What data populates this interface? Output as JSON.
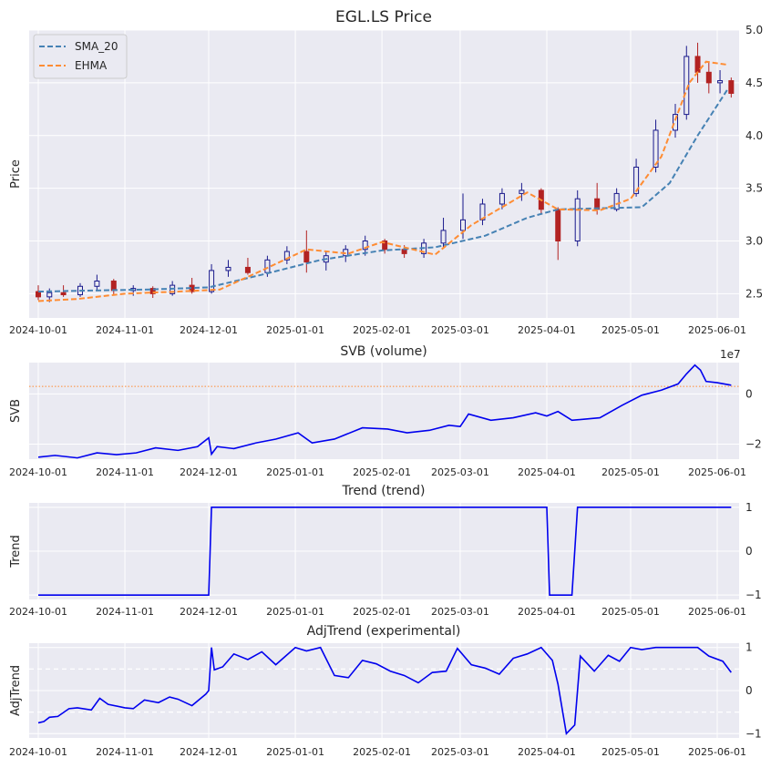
{
  "figure_title": "EGL.LS Price",
  "colors": {
    "plot_bg": "#EAEAF2",
    "grid": "#FFFFFF",
    "sma": "#4682B4",
    "ehma": "#FF8C33",
    "line": "#0000EE",
    "candle_up": "#1A1A8C",
    "candle_down": "#B22222",
    "svb_ref": "#FF8C33"
  },
  "date_ticks": [
    "2024-10-01",
    "2024-11-01",
    "2024-12-01",
    "2025-01-01",
    "2025-02-01",
    "2025-03-01",
    "2025-04-01",
    "2025-05-01",
    "2025-06-01"
  ],
  "chart_data": [
    {
      "type": "candlestick",
      "title": "EGL.LS Price",
      "ylabel": "Price",
      "ylim": [
        2.27,
        5.0
      ],
      "yticks": [
        2.5,
        3.0,
        3.5,
        4.0,
        4.5,
        5.0
      ],
      "ytick_labels": [
        "2.5",
        "3.0",
        "3.5",
        "4.0",
        "4.5",
        "5.0"
      ],
      "legend": "top-left",
      "grid": true,
      "series": [
        {
          "name": "SMA_20",
          "style": "dashed",
          "x": [
            "2024-10-01",
            "2024-10-20",
            "2024-11-10",
            "2024-12-01",
            "2024-12-20",
            "2025-01-10",
            "2025-02-01",
            "2025-02-20",
            "2025-03-10",
            "2025-03-25",
            "2025-04-05",
            "2025-04-20",
            "2025-05-05",
            "2025-05-15",
            "2025-05-25",
            "2025-06-05"
          ],
          "values": [
            2.52,
            2.53,
            2.54,
            2.56,
            2.68,
            2.82,
            2.91,
            2.94,
            3.05,
            3.22,
            3.3,
            3.31,
            3.32,
            3.55,
            4.0,
            4.45
          ]
        },
        {
          "name": "EHMA",
          "style": "dashed",
          "x": [
            "2024-10-01",
            "2024-10-15",
            "2024-11-01",
            "2024-11-20",
            "2024-12-05",
            "2024-12-20",
            "2025-01-05",
            "2025-01-20",
            "2025-02-01",
            "2025-02-20",
            "2025-03-05",
            "2025-03-25",
            "2025-04-05",
            "2025-04-20",
            "2025-05-01",
            "2025-05-12",
            "2025-05-22",
            "2025-05-28",
            "2025-06-05"
          ],
          "values": [
            2.43,
            2.45,
            2.5,
            2.52,
            2.54,
            2.72,
            2.92,
            2.88,
            2.99,
            2.87,
            3.15,
            3.46,
            3.3,
            3.29,
            3.4,
            3.8,
            4.5,
            4.7,
            4.67
          ]
        }
      ],
      "candles": [
        {
          "x": "2024-10-01",
          "o": 2.52,
          "h": 2.58,
          "l": 2.44,
          "c": 2.47
        },
        {
          "x": "2024-10-05",
          "o": 2.47,
          "h": 2.55,
          "l": 2.42,
          "c": 2.51
        },
        {
          "x": "2024-10-10",
          "o": 2.51,
          "h": 2.58,
          "l": 2.47,
          "c": 2.49
        },
        {
          "x": "2024-10-16",
          "o": 2.49,
          "h": 2.6,
          "l": 2.47,
          "c": 2.57
        },
        {
          "x": "2024-10-22",
          "o": 2.57,
          "h": 2.68,
          "l": 2.53,
          "c": 2.62
        },
        {
          "x": "2024-10-28",
          "o": 2.62,
          "h": 2.64,
          "l": 2.49,
          "c": 2.53
        },
        {
          "x": "2024-11-04",
          "o": 2.53,
          "h": 2.58,
          "l": 2.48,
          "c": 2.55
        },
        {
          "x": "2024-11-11",
          "o": 2.55,
          "h": 2.57,
          "l": 2.46,
          "c": 2.5
        },
        {
          "x": "2024-11-18",
          "o": 2.5,
          "h": 2.62,
          "l": 2.48,
          "c": 2.58
        },
        {
          "x": "2024-11-25",
          "o": 2.58,
          "h": 2.65,
          "l": 2.5,
          "c": 2.52
        },
        {
          "x": "2024-12-02",
          "o": 2.52,
          "h": 2.78,
          "l": 2.5,
          "c": 2.72
        },
        {
          "x": "2024-12-08",
          "o": 2.72,
          "h": 2.82,
          "l": 2.66,
          "c": 2.75
        },
        {
          "x": "2024-12-15",
          "o": 2.75,
          "h": 2.84,
          "l": 2.68,
          "c": 2.7
        },
        {
          "x": "2024-12-22",
          "o": 2.7,
          "h": 2.86,
          "l": 2.66,
          "c": 2.82
        },
        {
          "x": "2024-12-29",
          "o": 2.82,
          "h": 2.95,
          "l": 2.78,
          "c": 2.9
        },
        {
          "x": "2025-01-05",
          "o": 2.9,
          "h": 3.1,
          "l": 2.7,
          "c": 2.8
        },
        {
          "x": "2025-01-12",
          "o": 2.8,
          "h": 2.9,
          "l": 2.72,
          "c": 2.86
        },
        {
          "x": "2025-01-19",
          "o": 2.86,
          "h": 2.96,
          "l": 2.8,
          "c": 2.92
        },
        {
          "x": "2025-01-26",
          "o": 2.92,
          "h": 3.05,
          "l": 2.86,
          "c": 3.0
        },
        {
          "x": "2025-02-02",
          "o": 3.0,
          "h": 3.02,
          "l": 2.88,
          "c": 2.92
        },
        {
          "x": "2025-02-09",
          "o": 2.92,
          "h": 2.96,
          "l": 2.84,
          "c": 2.88
        },
        {
          "x": "2025-02-16",
          "o": 2.88,
          "h": 3.02,
          "l": 2.84,
          "c": 2.98
        },
        {
          "x": "2025-02-23",
          "o": 2.98,
          "h": 3.22,
          "l": 2.94,
          "c": 3.1
        },
        {
          "x": "2025-03-02",
          "o": 3.1,
          "h": 3.45,
          "l": 3.02,
          "c": 3.2
        },
        {
          "x": "2025-03-09",
          "o": 3.2,
          "h": 3.4,
          "l": 3.15,
          "c": 3.35
        },
        {
          "x": "2025-03-16",
          "o": 3.35,
          "h": 3.5,
          "l": 3.3,
          "c": 3.45
        },
        {
          "x": "2025-03-23",
          "o": 3.45,
          "h": 3.55,
          "l": 3.38,
          "c": 3.48
        },
        {
          "x": "2025-03-30",
          "o": 3.48,
          "h": 3.5,
          "l": 3.25,
          "c": 3.3
        },
        {
          "x": "2025-04-05",
          "o": 3.3,
          "h": 3.32,
          "l": 2.82,
          "c": 3.0
        },
        {
          "x": "2025-04-12",
          "o": 3.0,
          "h": 3.48,
          "l": 2.95,
          "c": 3.4
        },
        {
          "x": "2025-04-19",
          "o": 3.4,
          "h": 3.55,
          "l": 3.25,
          "c": 3.3
        },
        {
          "x": "2025-04-26",
          "o": 3.3,
          "h": 3.5,
          "l": 3.28,
          "c": 3.45
        },
        {
          "x": "2025-05-03",
          "o": 3.45,
          "h": 3.78,
          "l": 3.42,
          "c": 3.7
        },
        {
          "x": "2025-05-10",
          "o": 3.7,
          "h": 4.15,
          "l": 3.65,
          "c": 4.05
        },
        {
          "x": "2025-05-17",
          "o": 4.05,
          "h": 4.3,
          "l": 3.98,
          "c": 4.2
        },
        {
          "x": "2025-05-21",
          "o": 4.2,
          "h": 4.85,
          "l": 4.15,
          "c": 4.75
        },
        {
          "x": "2025-05-25",
          "o": 4.75,
          "h": 4.88,
          "l": 4.5,
          "c": 4.6
        },
        {
          "x": "2025-05-29",
          "o": 4.6,
          "h": 4.7,
          "l": 4.4,
          "c": 4.5
        },
        {
          "x": "2025-06-02",
          "o": 4.5,
          "h": 4.62,
          "l": 4.4,
          "c": 4.52
        },
        {
          "x": "2025-06-06",
          "o": 4.52,
          "h": 4.55,
          "l": 4.36,
          "c": 4.4
        }
      ]
    },
    {
      "type": "line",
      "title": "SVB (volume)",
      "ylabel": "SVB",
      "offset_label": "1e7",
      "ylim": [
        -2.6,
        1.25
      ],
      "yticks": [
        -2,
        0
      ],
      "ytick_labels": [
        "−2",
        "0"
      ],
      "reference_line": 0.3,
      "grid": true,
      "series": [
        {
          "name": "",
          "x": [
            "2024-10-01",
            "2024-10-07",
            "2024-10-15",
            "2024-10-22",
            "2024-10-29",
            "2024-11-05",
            "2024-11-12",
            "2024-11-20",
            "2024-11-27",
            "2024-12-01",
            "2024-12-02",
            "2024-12-04",
            "2024-12-10",
            "2024-12-18",
            "2024-12-25",
            "2025-01-02",
            "2025-01-07",
            "2025-01-15",
            "2025-01-25",
            "2025-02-03",
            "2025-02-10",
            "2025-02-18",
            "2025-02-25",
            "2025-03-01",
            "2025-03-04",
            "2025-03-12",
            "2025-03-20",
            "2025-03-28",
            "2025-04-01",
            "2025-04-05",
            "2025-04-10",
            "2025-04-20",
            "2025-04-28",
            "2025-05-05",
            "2025-05-12",
            "2025-05-18",
            "2025-05-21",
            "2025-05-24",
            "2025-05-26",
            "2025-05-28",
            "2025-06-01",
            "2025-06-06"
          ],
          "values": [
            -2.52,
            -2.45,
            -2.55,
            -2.35,
            -2.42,
            -2.35,
            -2.15,
            -2.25,
            -2.1,
            -1.75,
            -2.4,
            -2.1,
            -2.18,
            -1.95,
            -1.8,
            -1.55,
            -1.95,
            -1.8,
            -1.35,
            -1.4,
            -1.55,
            -1.45,
            -1.25,
            -1.3,
            -0.8,
            -1.05,
            -0.95,
            -0.75,
            -0.88,
            -0.7,
            -1.05,
            -0.95,
            -0.45,
            -0.05,
            0.15,
            0.4,
            0.8,
            1.15,
            0.95,
            0.5,
            0.45,
            0.35
          ]
        }
      ]
    },
    {
      "type": "line",
      "title": "Trend (trend)",
      "ylabel": "Trend",
      "ylim": [
        -1.1,
        1.1
      ],
      "yticks": [
        -1,
        0,
        1
      ],
      "ytick_labels": [
        "−1",
        "0",
        "1"
      ],
      "grid": true,
      "series": [
        {
          "name": "",
          "x": [
            "2024-10-01",
            "2024-11-30",
            "2024-12-01",
            "2024-12-02",
            "2025-03-31",
            "2025-04-01",
            "2025-04-02",
            "2025-04-10",
            "2025-04-12",
            "2025-06-06"
          ],
          "values": [
            -1,
            -1,
            -1,
            1,
            1,
            1,
            -1,
            -1,
            1,
            1
          ]
        }
      ]
    },
    {
      "type": "line",
      "title": "AdjTrend (experimental)",
      "ylabel": "AdjTrend",
      "ylim": [
        -1.1,
        1.1
      ],
      "yticks": [
        -1,
        0,
        1
      ],
      "ytick_labels": [
        "−1",
        "0",
        "1"
      ],
      "hlines": [
        0.5,
        -0.5
      ],
      "grid": true,
      "series": [
        {
          "name": "",
          "x": [
            "2024-10-01",
            "2024-10-03",
            "2024-10-05",
            "2024-10-08",
            "2024-10-12",
            "2024-10-15",
            "2024-10-20",
            "2024-10-23",
            "2024-10-26",
            "2024-11-01",
            "2024-11-04",
            "2024-11-08",
            "2024-11-13",
            "2024-11-17",
            "2024-11-20",
            "2024-11-25",
            "2024-11-30",
            "2024-12-01",
            "2024-12-02",
            "2024-12-03",
            "2024-12-06",
            "2024-12-10",
            "2024-12-15",
            "2024-12-20",
            "2024-12-25",
            "2025-01-01",
            "2025-01-05",
            "2025-01-10",
            "2025-01-15",
            "2025-01-20",
            "2025-01-25",
            "2025-01-30",
            "2025-02-04",
            "2025-02-09",
            "2025-02-14",
            "2025-02-19",
            "2025-02-24",
            "2025-02-28",
            "2025-03-05",
            "2025-03-10",
            "2025-03-15",
            "2025-03-20",
            "2025-03-25",
            "2025-03-30",
            "2025-04-03",
            "2025-04-05",
            "2025-04-08",
            "2025-04-11",
            "2025-04-13",
            "2025-04-18",
            "2025-04-23",
            "2025-04-27",
            "2025-05-01",
            "2025-05-05",
            "2025-05-10",
            "2025-05-15",
            "2025-05-20",
            "2025-05-25",
            "2025-05-29",
            "2025-06-03",
            "2025-06-06"
          ],
          "values": [
            -0.75,
            -0.72,
            -0.62,
            -0.6,
            -0.42,
            -0.4,
            -0.45,
            -0.18,
            -0.32,
            -0.4,
            -0.42,
            -0.22,
            -0.28,
            -0.15,
            -0.2,
            -0.35,
            -0.08,
            0.0,
            1.0,
            0.48,
            0.55,
            0.85,
            0.72,
            0.9,
            0.6,
            1.0,
            0.92,
            1.0,
            0.35,
            0.3,
            0.7,
            0.62,
            0.45,
            0.35,
            0.18,
            0.42,
            0.45,
            0.98,
            0.6,
            0.52,
            0.38,
            0.75,
            0.85,
            1.0,
            0.7,
            0.15,
            -1.0,
            -0.8,
            0.8,
            0.45,
            0.82,
            0.68,
            1.0,
            0.95,
            1.0,
            1.0,
            1.0,
            1.0,
            0.8,
            0.68,
            0.42
          ]
        }
      ]
    }
  ]
}
